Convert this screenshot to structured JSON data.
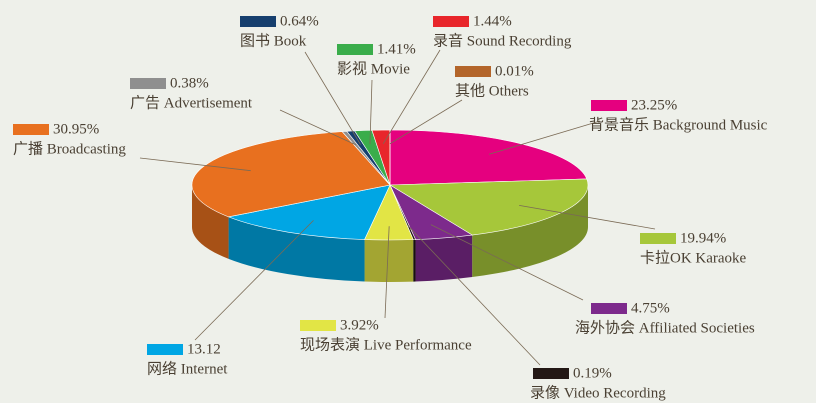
{
  "chart_data": {
    "type": "pie",
    "categories": [
      "背景音乐 Background Music",
      "卡拉OK Karaoke",
      "海外协会 Affiliated Societies",
      "录像 Video Recording",
      "现场表演 Live Performance",
      "网络 Internet",
      "广播 Broadcasting",
      "广告 Advertisement",
      "图书 Book",
      "影视 Movie",
      "录音 Sound Recording",
      "其他 Others"
    ],
    "values": [
      23.25,
      19.94,
      4.75,
      0.19,
      3.92,
      13.12,
      30.95,
      0.38,
      0.64,
      1.41,
      1.44,
      0.01
    ],
    "value_labels": [
      "23.25%",
      "19.94%",
      "4.75%",
      "0.19%",
      "3.92%",
      "13.12",
      "30.95%",
      "0.38%",
      "0.64%",
      "1.41%",
      "1.44%",
      "0.01%"
    ],
    "colors": [
      "#e5007f",
      "#a6c73a",
      "#7d2a8c",
      "#231815",
      "#e2e545",
      "#00a6e4",
      "#e8701f",
      "#8f8f8f",
      "#163f6e",
      "#3aad4b",
      "#e8262b",
      "#b3652a"
    ]
  }
}
